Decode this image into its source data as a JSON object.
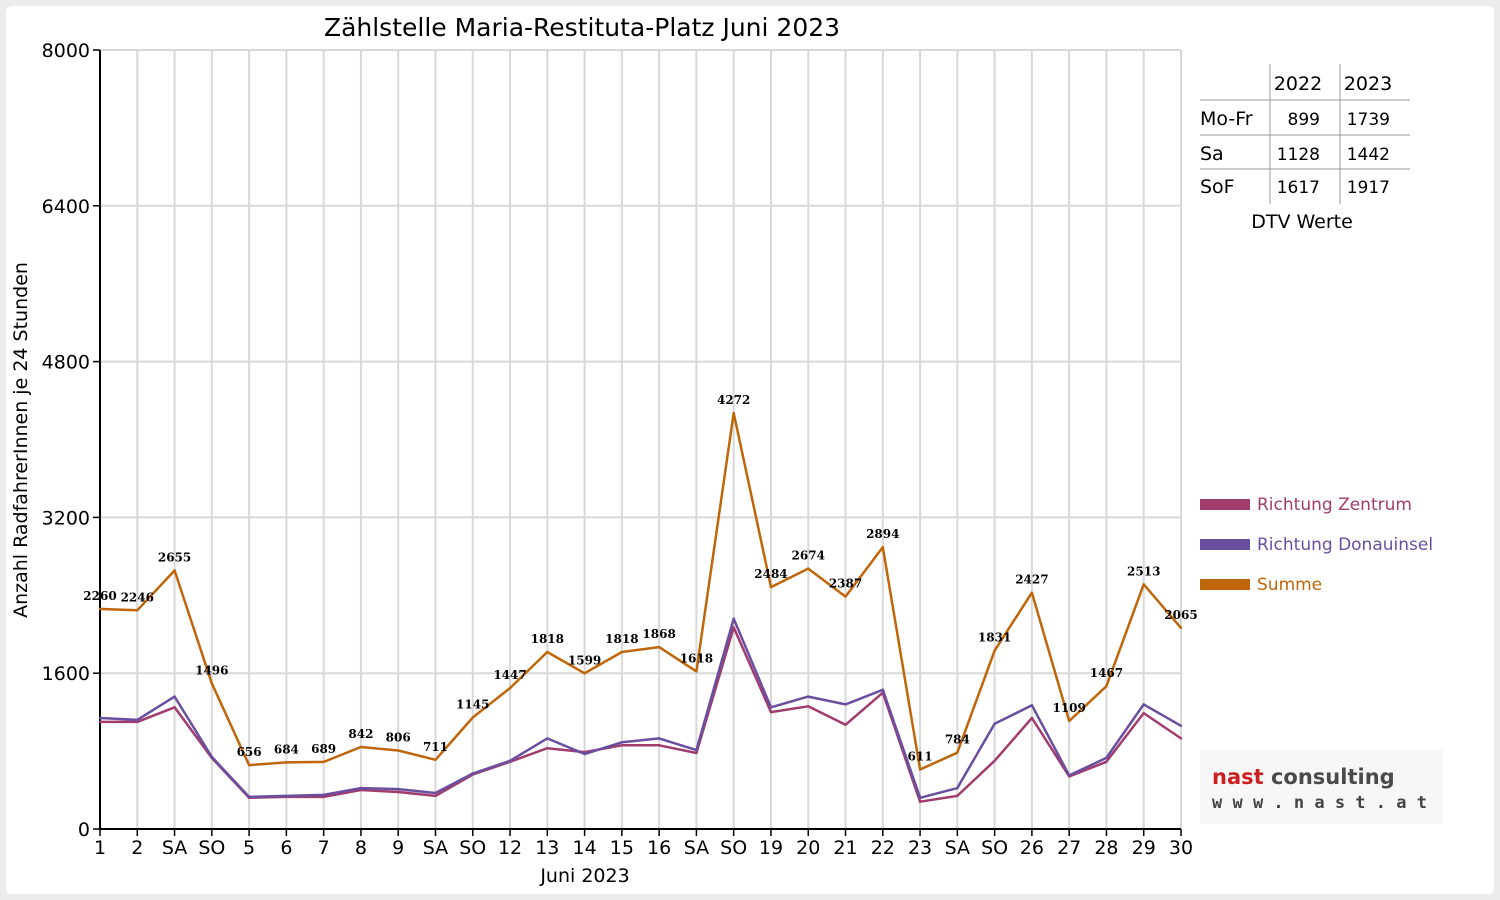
{
  "chart_data": {
    "type": "line",
    "title": "Zählstelle Maria-Restituta-Platz Juni 2023",
    "xlabel": "Juni 2023",
    "ylabel": "Anzahl RadfahrerInnen je 24 Stunden",
    "ylim": [
      0,
      8000
    ],
    "yticks": [
      "0",
      "1600",
      "3200",
      "4800",
      "6400",
      "8000"
    ],
    "grid": true,
    "legend_position": "right",
    "categories": [
      "1",
      "2",
      "SA",
      "SO",
      "5",
      "6",
      "7",
      "8",
      "9",
      "SA",
      "SO",
      "12",
      "13",
      "14",
      "15",
      "16",
      "SA",
      "SO",
      "19",
      "20",
      "21",
      "22",
      "23",
      "SA",
      "SO",
      "26",
      "27",
      "28",
      "29",
      "30"
    ],
    "red_categories": [
      3,
      7,
      10,
      17,
      24
    ],
    "series": [
      {
        "name": "Richtung Zentrum",
        "color": "#a03c6e",
        "values": [
          1100,
          1100,
          1250,
          730,
          320,
          330,
          330,
          400,
          380,
          340,
          560,
          690,
          830,
          790,
          860,
          860,
          780,
          2070,
          1200,
          1260,
          1070,
          1400,
          280,
          340,
          700,
          1140,
          540,
          690,
          1190,
          930
        ]
      },
      {
        "name": "Richtung Donauinsel",
        "color": "#6a4fa0",
        "values": [
          1140,
          1120,
          1360,
          740,
          330,
          340,
          350,
          420,
          410,
          370,
          570,
          700,
          930,
          770,
          890,
          930,
          810,
          2160,
          1250,
          1360,
          1280,
          1430,
          320,
          420,
          1080,
          1270,
          550,
          730,
          1280,
          1060
        ]
      },
      {
        "name": "Summe",
        "color": "#c0660a",
        "values": [
          2260,
          2246,
          2655,
          1496,
          656,
          684,
          689,
          842,
          806,
          711,
          1145,
          1447,
          1818,
          1599,
          1818,
          1868,
          1618,
          4272,
          2484,
          2674,
          2387,
          2894,
          611,
          784,
          1831,
          2427,
          1109,
          1467,
          2513,
          2065
        ],
        "labels": [
          "2260",
          "2246",
          "2655",
          "1496",
          "656",
          "684",
          "689",
          "842",
          "806",
          "711",
          "1145",
          "1447",
          "1818",
          "1599",
          "1818",
          "1868",
          "1618",
          "4272",
          "2484",
          "2674",
          "2387",
          "2894",
          "611",
          "784",
          "1831",
          "2427",
          "1109",
          "1467",
          "2513",
          "2065"
        ]
      }
    ]
  },
  "dtv_table": {
    "headers": [
      "",
      "2022",
      "2023"
    ],
    "rows": [
      {
        "label": "Mo-Fr",
        "y2022": "899",
        "y2023": "1739"
      },
      {
        "label": "Sa",
        "y2022": "1128",
        "y2023": "1442"
      },
      {
        "label": "SoF",
        "y2022": "1617",
        "y2023": "1917"
      }
    ],
    "caption": "DTV Werte"
  },
  "logo": {
    "name": "nast consulting",
    "url": "w w w . n a s t . a t"
  },
  "colors": {
    "grid": "#d8d8d8",
    "red_day": "#ff0000",
    "background": "#ececec"
  }
}
